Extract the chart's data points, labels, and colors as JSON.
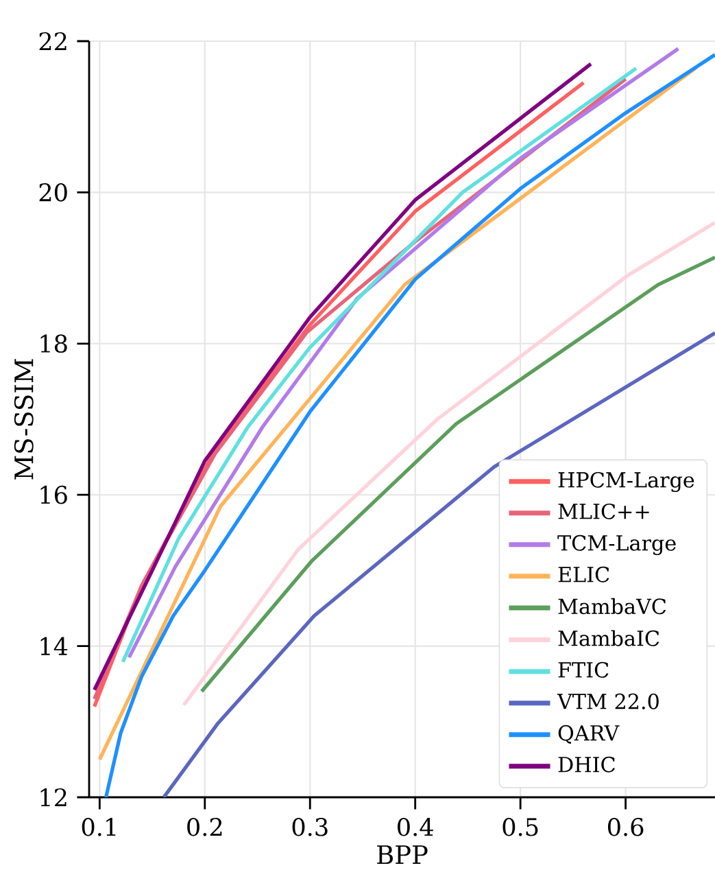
{
  "chart_data": {
    "type": "line",
    "xlabel": "BPP",
    "ylabel": "MS-SSIM",
    "xlim": [
      0.09,
      0.685
    ],
    "ylim": [
      12,
      22
    ],
    "xticks": [
      0.1,
      0.2,
      0.3,
      0.4,
      0.5,
      0.6
    ],
    "yticks": [
      12,
      14,
      16,
      18,
      20,
      22
    ],
    "grid": true,
    "legend": "bottom right",
    "marker": "none",
    "line_style": "solid",
    "series": [
      {
        "name": "HPCM-Large",
        "color": "#ff6060",
        "x": [
          0.095,
          0.14,
          0.21,
          0.3,
          0.4,
          0.56
        ],
        "values": [
          13.2,
          14.8,
          16.6,
          18.25,
          19.75,
          21.45
        ]
      },
      {
        "name": "MLIC++",
        "color": "#e86478",
        "x": [
          0.095,
          0.14,
          0.21,
          0.297,
          0.4,
          0.6
        ],
        "values": [
          13.3,
          14.8,
          16.55,
          18.15,
          19.35,
          21.5
        ]
      },
      {
        "name": "TCM-Large",
        "color": "#b27ce8",
        "x": [
          0.128,
          0.172,
          0.255,
          0.345,
          0.5,
          0.65
        ],
        "values": [
          13.85,
          15.05,
          16.9,
          18.6,
          20.45,
          21.9
        ]
      },
      {
        "name": "ELIC",
        "color": "#ffb45a",
        "x": [
          0.1,
          0.215,
          0.39,
          0.667
        ],
        "values": [
          12.5,
          15.85,
          18.78,
          21.65
        ]
      },
      {
        "name": "MambaVC",
        "color": "#5c9e5c",
        "x": [
          0.197,
          0.302,
          0.439,
          0.631,
          0.685
        ],
        "values": [
          13.4,
          15.13,
          16.94,
          18.78,
          19.14
        ]
      },
      {
        "name": "MambaIC",
        "color": "#ffd3dc",
        "x": [
          0.18,
          0.289,
          0.421,
          0.602,
          0.685
        ],
        "values": [
          13.22,
          15.28,
          17.0,
          18.9,
          19.6
        ]
      },
      {
        "name": "FTIC",
        "color": "#60e0e0",
        "x": [
          0.122,
          0.175,
          0.241,
          0.3,
          0.445,
          0.61
        ],
        "values": [
          13.79,
          15.42,
          16.9,
          17.95,
          20.0,
          21.64
        ]
      },
      {
        "name": "VTM 22.0",
        "color": "#5c66c0",
        "x": [
          0.161,
          0.212,
          0.304,
          0.475,
          0.685
        ],
        "values": [
          12.0,
          12.97,
          14.4,
          16.37,
          18.14
        ]
      },
      {
        "name": "QARV",
        "color": "#1e90ff",
        "x": [
          0.106,
          0.12,
          0.14,
          0.17,
          0.2,
          0.3,
          0.4,
          0.5,
          0.6,
          0.685
        ],
        "values": [
          12.0,
          12.85,
          13.6,
          14.4,
          15.0,
          17.1,
          18.85,
          20.05,
          21.05,
          21.82
        ]
      },
      {
        "name": "DHIC",
        "color": "#800080",
        "x": [
          0.095,
          0.15,
          0.2,
          0.3,
          0.4,
          0.567
        ],
        "values": [
          13.42,
          15.0,
          16.45,
          18.35,
          19.9,
          21.7
        ]
      }
    ]
  }
}
